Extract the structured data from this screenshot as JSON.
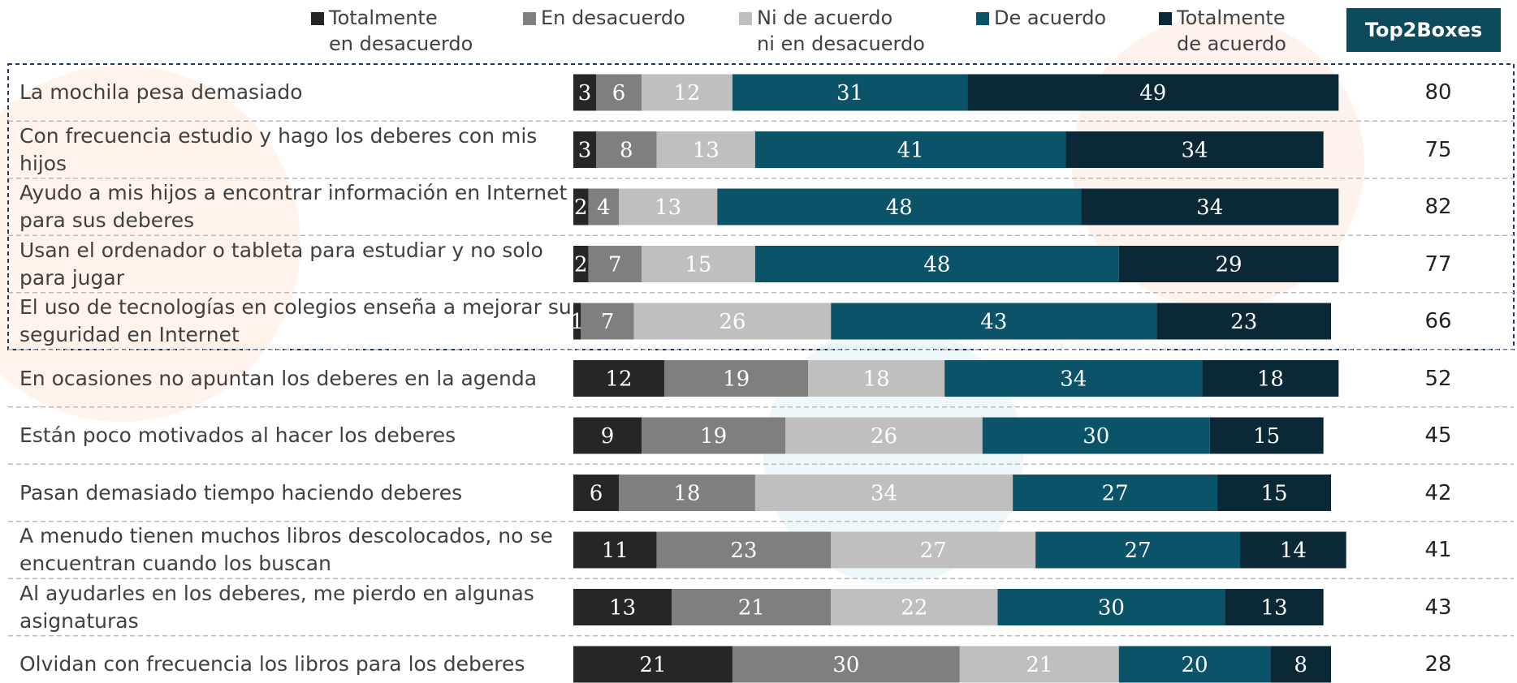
{
  "chart_data": {
    "type": "bar",
    "stacked": true,
    "orientation": "horizontal",
    "xlim": [
      0,
      100
    ],
    "categories": [
      "La mochila pesa demasiado",
      "Con frecuencia estudio y hago los deberes con mis hijos",
      "Ayudo a mis hijos a encontrar información en Internet para sus deberes",
      "Usan el ordenador o tableta para estudiar y no solo para jugar",
      "El uso de tecnologías en colegios enseña a mejorar su seguridad en Internet",
      "En ocasiones no apuntan los deberes en la agenda",
      "Están poco motivados al hacer los deberes",
      "Pasan demasiado tiempo haciendo deberes",
      "A menudo tienen muchos libros descolocados, no se encuentran cuando los buscan",
      "Al ayudarles en los deberes, me pierdo en algunas asignaturas",
      "Olvidan con frecuencia los libros para los deberes"
    ],
    "series": [
      {
        "name": "Totalmente\nen desacuerdo",
        "color": "#262626",
        "values": [
          3,
          3,
          2,
          2,
          1,
          12,
          9,
          6,
          11,
          13,
          21
        ]
      },
      {
        "name": "En desacuerdo",
        "color": "#7f7f7f",
        "values": [
          6,
          8,
          4,
          7,
          7,
          19,
          19,
          18,
          23,
          21,
          30
        ]
      },
      {
        "name": "Ni de acuerdo\nni en desacuerdo",
        "color": "#bfbfbf",
        "values": [
          12,
          13,
          13,
          15,
          26,
          18,
          26,
          34,
          27,
          22,
          21
        ]
      },
      {
        "name": "De acuerdo",
        "color": "#0b5369",
        "values": [
          31,
          41,
          48,
          48,
          43,
          34,
          30,
          27,
          27,
          30,
          20
        ]
      },
      {
        "name": "Totalmente\nde acuerdo",
        "color": "#0a2835",
        "values": [
          49,
          34,
          34,
          29,
          23,
          18,
          15,
          15,
          14,
          13,
          8
        ]
      }
    ],
    "top2boxes": {
      "title": "Top2Boxes",
      "values": [
        80,
        75,
        82,
        77,
        66,
        52,
        45,
        42,
        41,
        43,
        28
      ]
    }
  }
}
